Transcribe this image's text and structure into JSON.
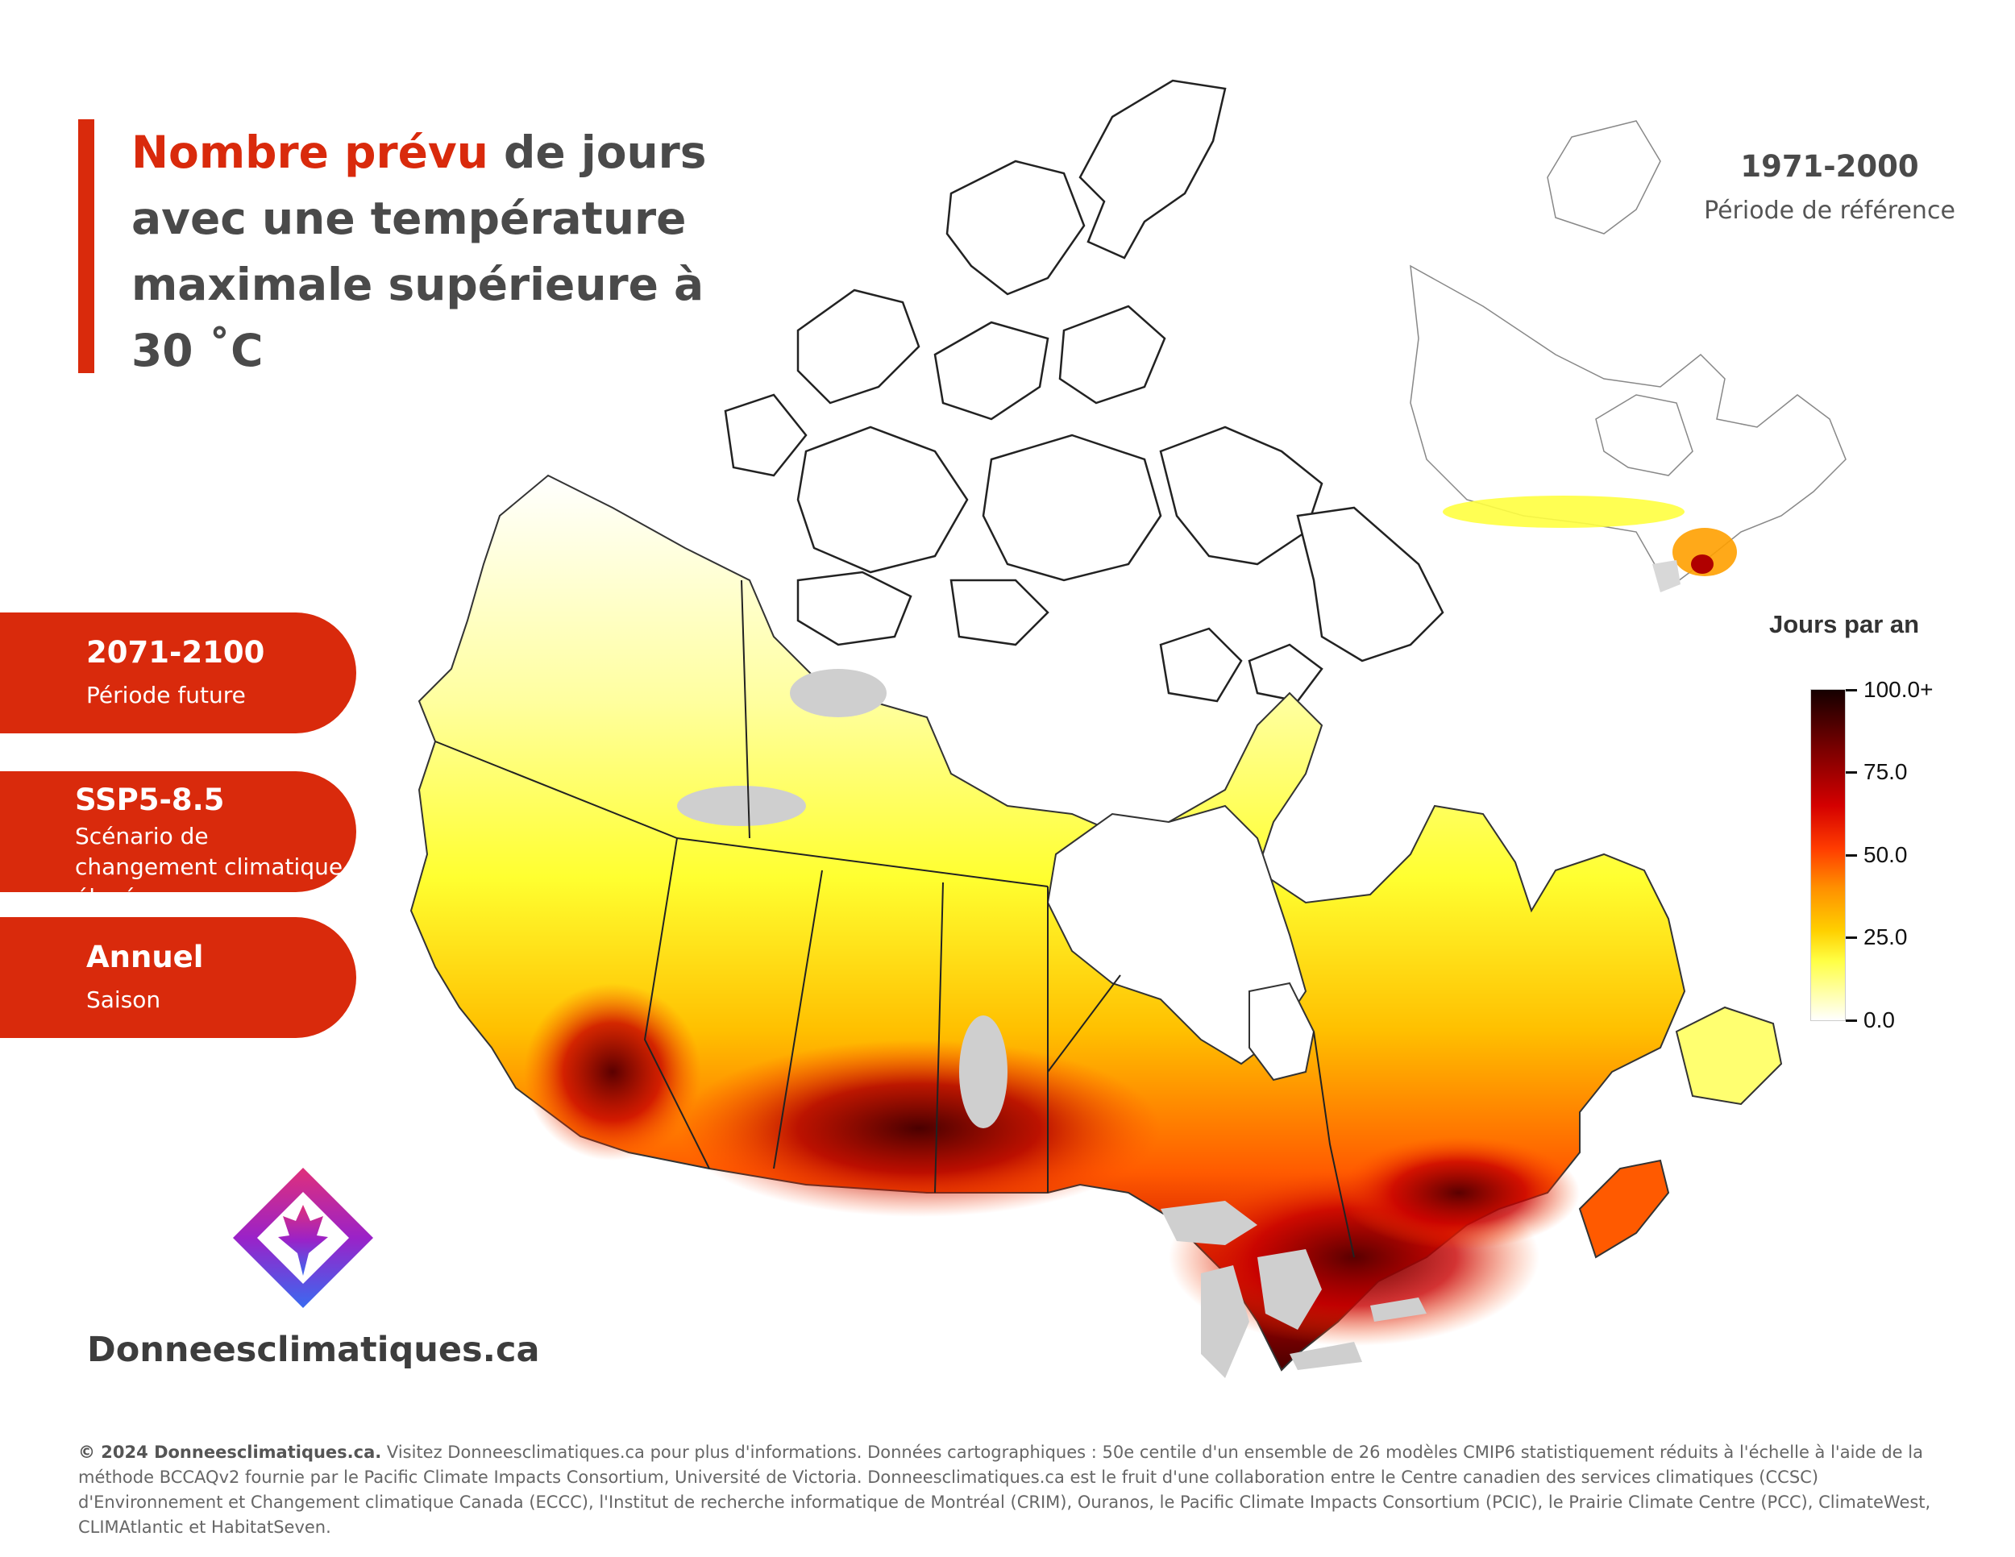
{
  "title": {
    "accent": "Nombre prévu",
    "rest": " de jours avec une température maximale supérieure à 30 ˚C"
  },
  "panels": [
    {
      "main": "2071-2100",
      "sub": "Période future"
    },
    {
      "main": "SSP5-8.5",
      "sub": "Scénario de changement climatique élevé"
    },
    {
      "main": "Annuel",
      "sub": "Saison"
    }
  ],
  "inset": {
    "title": "1971-2000",
    "subtitle": "Période de référence"
  },
  "legend": {
    "title": "Jours par an",
    "ticks": [
      "100.0+",
      "75.0",
      "50.0",
      "25.0",
      "0.0"
    ],
    "colors": [
      "#ffffff",
      "#ffff44",
      "#ffd000",
      "#ff9000",
      "#ff3c00",
      "#d40000",
      "#7a0000",
      "#150000"
    ]
  },
  "brand": "Donneesclimatiques.ca",
  "footer": {
    "bold": "© 2024 Donneesclimatiques.ca.",
    "text": " Visitez Donneesclimatiques.ca pour plus d'informations. Données cartographiques : 50e centile d'un ensemble de 26 modèles CMIP6 statistiquement réduits à l'échelle à l'aide de la méthode BCCAQv2 fournie par le Pacific Climate Impacts Consortium, Université de Victoria. Donneesclimatiques.ca est le fruit d'une collaboration entre le Centre canadien des services climatiques (CCSC) d'Environnement et Changement climatique Canada (ECCC), l'Institut de recherche informatique de Montréal (CRIM), Ouranos, le Pacific Climate Impacts Consortium (PCIC), le Prairie Climate Centre (PCC), ClimateWest, CLIMAtlantic et HabitatSeven."
  },
  "colors": {
    "accent": "#d92a0c",
    "title_text": "#4a4a4a",
    "lakes": "#cfcfcf"
  }
}
